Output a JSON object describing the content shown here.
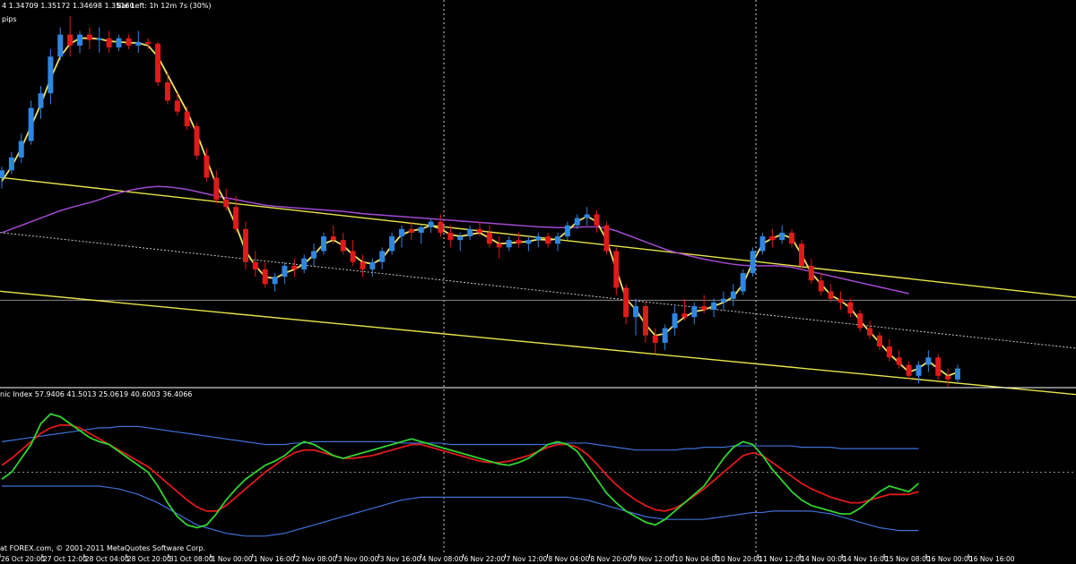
{
  "header": {
    "ohlc_text": "4 1.34709 1.35172 1.34698 1.35160",
    "bar_left_text": "Bar Left: 1h 12m 7s (30%)",
    "pips_text": "pips"
  },
  "indicator": {
    "label": "nic Index 57.9406 41.5013 25.0619 40.6003 36.4066"
  },
  "footer": {
    "copyright": "at FOREX.com, © 2001-2011 MetaQuotes Software Corp."
  },
  "chart_data": {
    "type": "candlestick",
    "x_tick_labels": [
      "26 Oct 20:00",
      "27 Oct 12:00",
      "28 Oct 04:00",
      "28 Oct 20:00",
      "31 Oct 08:00",
      "1 Nov 00:00",
      "1 Nov 16:00",
      "2 Nov 08:00",
      "3 Nov 00:00",
      "3 Nov 16:00",
      "4 Nov 08:00",
      "6 Nov 22:00",
      "7 Nov 12:00",
      "8 Nov 04:00",
      "8 Nov 20:00",
      "9 Nov 12:00",
      "10 Nov 04:00",
      "10 Nov 20:00",
      "11 Nov 12:00",
      "14 Nov 00:00",
      "14 Nov 16:00",
      "15 Nov 08:00",
      "16 Nov 00:00",
      "16 Nov 16:00"
    ],
    "candles": [
      [
        1.385,
        1.388,
        1.382,
        1.387
      ],
      [
        1.387,
        1.392,
        1.386,
        1.3905
      ],
      [
        1.3905,
        1.397,
        1.389,
        1.395
      ],
      [
        1.395,
        1.406,
        1.394,
        1.404
      ],
      [
        1.404,
        1.41,
        1.401,
        1.408
      ],
      [
        1.408,
        1.42,
        1.405,
        1.418
      ],
      [
        1.418,
        1.426,
        1.417,
        1.424
      ],
      [
        1.424,
        1.429,
        1.418,
        1.421
      ],
      [
        1.421,
        1.425,
        1.419,
        1.424
      ],
      [
        1.424,
        1.426,
        1.42,
        1.4225
      ],
      [
        1.4225,
        1.426,
        1.419,
        1.423
      ],
      [
        1.423,
        1.425,
        1.419,
        1.4205
      ],
      [
        1.4205,
        1.424,
        1.4195,
        1.423
      ],
      [
        1.423,
        1.424,
        1.42,
        1.421
      ],
      [
        1.421,
        1.425,
        1.419,
        1.422
      ],
      [
        1.422,
        1.423,
        1.42,
        1.4215
      ],
      [
        1.4215,
        1.422,
        1.41,
        1.411
      ],
      [
        1.411,
        1.414,
        1.405,
        1.406
      ],
      [
        1.406,
        1.408,
        1.402,
        1.403
      ],
      [
        1.403,
        1.4045,
        1.398,
        1.399
      ],
      [
        1.399,
        1.4,
        1.39,
        1.391
      ],
      [
        1.391,
        1.393,
        1.384,
        1.385
      ],
      [
        1.385,
        1.387,
        1.378,
        1.379
      ],
      [
        1.379,
        1.382,
        1.376,
        1.377
      ],
      [
        1.377,
        1.38,
        1.37,
        1.371
      ],
      [
        1.371,
        1.373,
        1.36,
        1.362
      ],
      [
        1.362,
        1.365,
        1.358,
        1.36
      ],
      [
        1.36,
        1.362,
        1.355,
        1.356
      ],
      [
        1.356,
        1.359,
        1.354,
        1.358
      ],
      [
        1.358,
        1.362,
        1.356,
        1.361
      ],
      [
        1.361,
        1.363,
        1.358,
        1.36
      ],
      [
        1.36,
        1.364,
        1.359,
        1.363
      ],
      [
        1.363,
        1.367,
        1.361,
        1.365
      ],
      [
        1.365,
        1.37,
        1.364,
        1.369
      ],
      [
        1.369,
        1.372,
        1.367,
        1.368
      ],
      [
        1.368,
        1.37,
        1.364,
        1.365
      ],
      [
        1.365,
        1.368,
        1.361,
        1.362
      ],
      [
        1.362,
        1.364,
        1.358,
        1.36
      ],
      [
        1.36,
        1.363,
        1.358,
        1.362
      ],
      [
        1.362,
        1.366,
        1.36,
        1.365
      ],
      [
        1.365,
        1.37,
        1.364,
        1.369
      ],
      [
        1.369,
        1.372,
        1.366,
        1.371
      ],
      [
        1.371,
        1.373,
        1.368,
        1.37
      ],
      [
        1.37,
        1.372,
        1.367,
        1.3715
      ],
      [
        1.3715,
        1.374,
        1.37,
        1.373
      ],
      [
        1.373,
        1.375,
        1.369,
        1.37
      ],
      [
        1.37,
        1.372,
        1.366,
        1.368
      ],
      [
        1.368,
        1.37,
        1.365,
        1.369
      ],
      [
        1.369,
        1.372,
        1.368,
        1.371
      ],
      [
        1.371,
        1.373,
        1.369,
        1.37
      ],
      [
        1.37,
        1.372,
        1.366,
        1.367
      ],
      [
        1.367,
        1.369,
        1.363,
        1.366
      ],
      [
        1.366,
        1.369,
        1.365,
        1.368
      ],
      [
        1.368,
        1.37,
        1.366,
        1.367
      ],
      [
        1.367,
        1.369,
        1.365,
        1.368
      ],
      [
        1.368,
        1.37,
        1.366,
        1.369
      ],
      [
        1.369,
        1.37,
        1.366,
        1.367
      ],
      [
        1.367,
        1.37,
        1.365,
        1.369
      ],
      [
        1.369,
        1.373,
        1.368,
        1.372
      ],
      [
        1.372,
        1.375,
        1.371,
        1.374
      ],
      [
        1.374,
        1.377,
        1.372,
        1.375
      ],
      [
        1.375,
        1.376,
        1.37,
        1.372
      ],
      [
        1.372,
        1.373,
        1.364,
        1.365
      ],
      [
        1.365,
        1.366,
        1.353,
        1.355
      ],
      [
        1.355,
        1.356,
        1.345,
        1.347
      ],
      [
        1.347,
        1.352,
        1.342,
        1.35
      ],
      [
        1.35,
        1.351,
        1.34,
        1.342
      ],
      [
        1.342,
        1.344,
        1.337,
        1.34
      ],
      [
        1.34,
        1.345,
        1.338,
        1.344
      ],
      [
        1.344,
        1.35,
        1.342,
        1.348
      ],
      [
        1.348,
        1.352,
        1.346,
        1.347
      ],
      [
        1.347,
        1.351,
        1.345,
        1.35
      ],
      [
        1.35,
        1.353,
        1.348,
        1.349
      ],
      [
        1.349,
        1.352,
        1.347,
        1.351
      ],
      [
        1.351,
        1.354,
        1.349,
        1.352
      ],
      [
        1.352,
        1.356,
        1.35,
        1.354
      ],
      [
        1.354,
        1.36,
        1.353,
        1.359
      ],
      [
        1.359,
        1.366,
        1.358,
        1.365
      ],
      [
        1.365,
        1.37,
        1.364,
        1.369
      ],
      [
        1.369,
        1.371,
        1.366,
        1.368
      ],
      [
        1.368,
        1.372,
        1.367,
        1.37
      ],
      [
        1.37,
        1.371,
        1.366,
        1.367
      ],
      [
        1.367,
        1.368,
        1.36,
        1.361
      ],
      [
        1.361,
        1.363,
        1.356,
        1.357
      ],
      [
        1.357,
        1.359,
        1.353,
        1.354
      ],
      [
        1.354,
        1.356,
        1.351,
        1.352
      ],
      [
        1.352,
        1.354,
        1.349,
        1.351
      ],
      [
        1.351,
        1.352,
        1.347,
        1.348
      ],
      [
        1.348,
        1.349,
        1.343,
        1.344
      ],
      [
        1.344,
        1.346,
        1.341,
        1.342
      ],
      [
        1.342,
        1.343,
        1.338,
        1.339
      ],
      [
        1.339,
        1.341,
        1.335,
        1.336
      ],
      [
        1.336,
        1.338,
        1.333,
        1.334
      ],
      [
        1.334,
        1.335,
        1.33,
        1.331
      ],
      [
        1.331,
        1.335,
        1.329,
        1.334
      ],
      [
        1.334,
        1.338,
        1.332,
        1.336
      ],
      [
        1.336,
        1.337,
        1.33,
        1.331
      ],
      [
        1.331,
        1.333,
        1.328,
        1.33
      ],
      [
        1.33,
        1.334,
        1.329,
        1.333
      ]
    ],
    "signal_line": [
      1.384,
      1.388,
      1.393,
      1.399,
      1.405,
      1.412,
      1.418,
      1.4215,
      1.423,
      1.423,
      1.4228,
      1.4222,
      1.422,
      1.4218,
      1.4217,
      1.421,
      1.418,
      1.413,
      1.408,
      1.403,
      1.397,
      1.39,
      1.383,
      1.378,
      1.372,
      1.365,
      1.361,
      1.358,
      1.3575,
      1.359,
      1.36,
      1.3615,
      1.364,
      1.367,
      1.368,
      1.3665,
      1.364,
      1.362,
      1.3615,
      1.363,
      1.3665,
      1.3695,
      1.3705,
      1.371,
      1.372,
      1.371,
      1.3695,
      1.369,
      1.3695,
      1.37,
      1.3685,
      1.367,
      1.3672,
      1.3674,
      1.3676,
      1.3682,
      1.368,
      1.3683,
      1.3705,
      1.373,
      1.3745,
      1.373,
      1.368,
      1.36,
      1.352,
      1.349,
      1.345,
      1.342,
      1.3425,
      1.345,
      1.347,
      1.3485,
      1.349,
      1.35,
      1.351,
      1.3525,
      1.356,
      1.362,
      1.367,
      1.3685,
      1.3695,
      1.3685,
      1.364,
      1.359,
      1.356,
      1.353,
      1.3515,
      1.3495,
      1.346,
      1.343,
      1.34,
      1.337,
      1.3345,
      1.332,
      1.333,
      1.335,
      1.333,
      1.331,
      1.332
    ],
    "ma_slow": [
      1.37,
      1.371,
      1.372,
      1.373,
      1.374,
      1.375,
      1.376,
      1.3768,
      1.3775,
      1.3782,
      1.379,
      1.38,
      1.3808,
      1.3815,
      1.382,
      1.3824,
      1.3826,
      1.3825,
      1.3822,
      1.3818,
      1.3812,
      1.3806,
      1.38,
      1.3795,
      1.379,
      1.3785,
      1.378,
      1.3775,
      1.3772,
      1.377,
      1.3768,
      1.3766,
      1.3764,
      1.3762,
      1.376,
      1.3758,
      1.3755,
      1.3752,
      1.375,
      1.3748,
      1.3746,
      1.3744,
      1.3742,
      1.374,
      1.3738,
      1.3736,
      1.3734,
      1.3732,
      1.373,
      1.3728,
      1.3726,
      1.3724,
      1.3722,
      1.372,
      1.3718,
      1.3716,
      1.3715,
      1.3714,
      1.3714,
      1.3715,
      1.3716,
      1.3716,
      1.3712,
      1.3705,
      1.3695,
      1.3685,
      1.3675,
      1.3665,
      1.3655,
      1.3647,
      1.364,
      1.3634,
      1.3628,
      1.3623,
      1.3618,
      1.3614,
      1.3611,
      1.361,
      1.361,
      1.361,
      1.3609,
      1.3606,
      1.36,
      1.3594,
      1.3588,
      1.3582,
      1.3576,
      1.357,
      1.3564,
      1.3558,
      1.3552,
      1.3546,
      1.354,
      1.3534
    ],
    "channel": {
      "upper": [
        1.385,
        1.356
      ],
      "middle": [
        1.37,
        1.342
      ],
      "lower": [
        1.354,
        1.329
      ]
    },
    "price_line": 1.3516,
    "price_range": [
      1.329,
      1.43
    ],
    "oscillator": {
      "range": [
        0,
        100
      ],
      "fast": [
        45,
        50,
        60,
        70,
        85,
        92,
        90,
        85,
        80,
        75,
        72,
        70,
        65,
        60,
        55,
        50,
        40,
        28,
        18,
        12,
        10,
        12,
        20,
        30,
        38,
        45,
        50,
        55,
        58,
        62,
        68,
        72,
        70,
        66,
        62,
        60,
        62,
        64,
        66,
        68,
        70,
        72,
        74,
        72,
        70,
        68,
        66,
        64,
        62,
        60,
        58,
        56,
        55,
        57,
        60,
        65,
        70,
        72,
        70,
        65,
        55,
        45,
        35,
        28,
        22,
        18,
        14,
        12,
        16,
        22,
        28,
        34,
        40,
        50,
        60,
        68,
        72,
        70,
        62,
        52,
        44,
        36,
        30,
        26,
        24,
        22,
        20,
        20,
        24,
        30,
        36,
        40,
        38,
        36,
        42
      ],
      "slow": [
        55,
        60,
        66,
        72,
        78,
        82,
        84,
        84,
        82,
        78,
        74,
        70,
        66,
        62,
        58,
        54,
        48,
        42,
        36,
        30,
        25,
        22,
        22,
        26,
        32,
        38,
        44,
        50,
        55,
        60,
        64,
        66,
        66,
        64,
        62,
        60,
        60,
        61,
        62,
        64,
        66,
        68,
        70,
        70,
        68,
        66,
        64,
        62,
        60,
        58,
        57,
        57,
        58,
        60,
        62,
        65,
        68,
        70,
        70,
        68,
        63,
        56,
        48,
        41,
        35,
        30,
        26,
        23,
        22,
        24,
        28,
        33,
        38,
        44,
        50,
        56,
        62,
        64,
        62,
        57,
        52,
        47,
        42,
        38,
        35,
        32,
        30,
        28,
        28,
        30,
        32,
        34,
        34,
        34,
        36
      ],
      "upper_band": [
        72,
        73,
        74,
        75,
        76,
        77,
        78,
        79,
        80,
        81,
        82,
        82,
        83,
        83,
        83,
        82,
        81,
        80,
        79,
        78,
        77,
        76,
        75,
        74,
        73,
        72,
        71,
        70,
        70,
        70,
        71,
        71,
        72,
        72,
        72,
        72,
        72,
        72,
        72,
        72,
        72,
        71,
        71,
        71,
        71,
        71,
        70,
        70,
        70,
        70,
        70,
        70,
        70,
        70,
        70,
        70,
        70,
        71,
        71,
        71,
        71,
        70,
        69,
        68,
        67,
        66,
        66,
        66,
        66,
        66,
        67,
        67,
        68,
        68,
        68,
        69,
        69,
        69,
        69,
        69,
        69,
        69,
        68,
        68,
        68,
        68,
        67,
        67,
        67,
        67,
        67,
        67,
        67,
        67,
        67
      ],
      "lower_band": [
        40,
        40,
        40,
        40,
        40,
        40,
        40,
        40,
        40,
        40,
        40,
        39,
        38,
        36,
        34,
        31,
        28,
        24,
        20,
        16,
        12,
        10,
        8,
        6,
        5,
        4,
        4,
        4,
        5,
        6,
        8,
        10,
        12,
        14,
        16,
        18,
        20,
        22,
        24,
        26,
        28,
        30,
        31,
        32,
        32,
        32,
        32,
        32,
        32,
        32,
        32,
        32,
        32,
        32,
        32,
        32,
        32,
        32,
        32,
        31,
        30,
        28,
        26,
        24,
        22,
        20,
        18,
        17,
        16,
        16,
        16,
        16,
        16,
        17,
        18,
        19,
        20,
        21,
        21,
        22,
        22,
        22,
        22,
        22,
        21,
        20,
        18,
        16,
        14,
        12,
        10,
        9,
        8,
        8,
        8
      ],
      "mid_level": 50
    }
  }
}
